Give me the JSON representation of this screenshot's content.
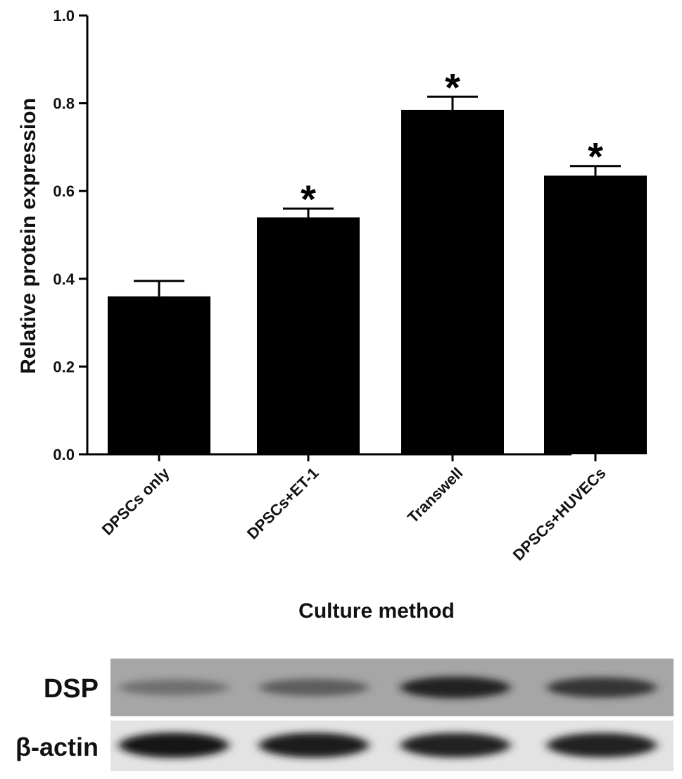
{
  "chart_data": {
    "type": "bar",
    "title": "",
    "xlabel": "Culture method",
    "ylabel": "Relative protein expression",
    "ylim": [
      0,
      1.0
    ],
    "yticks": [
      "0.0",
      "0.2",
      "0.4",
      "0.6",
      "0.8",
      "1.0"
    ],
    "categories": [
      "DPSCs only",
      "DPSCs+ET-1",
      "Transwell",
      "DPSCs+HUVECs"
    ],
    "values": [
      0.36,
      0.54,
      0.785,
      0.635
    ],
    "errors": [
      0.035,
      0.02,
      0.03,
      0.022
    ],
    "significance": [
      "",
      "*",
      "*",
      "*"
    ],
    "bar_color": "#000000",
    "grid": false,
    "legend": "none"
  },
  "blot": {
    "rows": [
      {
        "label": "DSP",
        "intensities": [
          0.32,
          0.45,
          0.85,
          0.72
        ]
      },
      {
        "label": "β-actin",
        "intensities": [
          0.9,
          0.88,
          0.85,
          0.85
        ]
      }
    ]
  }
}
